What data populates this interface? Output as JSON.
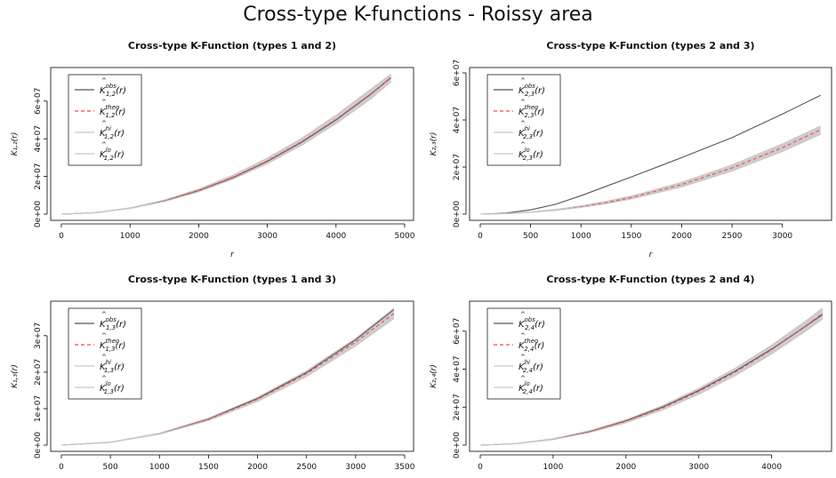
{
  "figure": {
    "title": "Cross-type K-functions - Roissy area"
  },
  "colors": {
    "obs": "#555555",
    "theo": "#ff4444",
    "envelope": "#c8c8c8",
    "axis": "#000000"
  },
  "chart_data": [
    {
      "type": "line",
      "title": "Cross-type K-Function (types 1 and 2)",
      "xlabel": "r",
      "ylabel": "K₁,₂(r)",
      "pair": "1,2",
      "xlim": [
        0,
        5000
      ],
      "ylim": [
        0,
        75000000
      ],
      "xticks": [
        0,
        1000,
        2000,
        3000,
        4000,
        5000
      ],
      "yticks": [
        0,
        20000000,
        40000000,
        60000000
      ],
      "ytick_labels": [
        "0e+00",
        "2e+07",
        "4e+07",
        "6e+07"
      ],
      "legend": {
        "position": "top-left",
        "entries": [
          "obs",
          "theo",
          "hi",
          "lo"
        ]
      },
      "grid": false,
      "x": [
        0,
        500,
        1000,
        1500,
        2000,
        2500,
        3000,
        3500,
        4000,
        4500,
        4800
      ],
      "series": [
        {
          "name": "obs",
          "values": [
            0,
            760000,
            3100000,
            7000000,
            12500000,
            19400000,
            28000000,
            38200000,
            50000000,
            63500000,
            72500000
          ]
        },
        {
          "name": "theo",
          "values": [
            0,
            785000,
            3140000,
            7070000,
            12570000,
            19630000,
            28270000,
            38480000,
            50270000,
            63620000,
            72380000
          ]
        },
        {
          "name": "hi",
          "values": [
            0,
            850000,
            3350000,
            7500000,
            13300000,
            20700000,
            29700000,
            40300000,
            52500000,
            66200000,
            74300000
          ]
        },
        {
          "name": "lo",
          "values": [
            0,
            720000,
            2950000,
            6700000,
            11900000,
            18600000,
            26800000,
            36600000,
            48000000,
            61000000,
            70200000
          ]
        }
      ]
    },
    {
      "type": "line",
      "title": "Cross-type K-Function (types 2 and 3)",
      "xlabel": "r",
      "ylabel": "K₂,₃(r)",
      "pair": "2,3",
      "xlim": [
        0,
        3400
      ],
      "ylim": [
        0,
        60000000
      ],
      "xticks": [
        0,
        500,
        1000,
        1500,
        2000,
        2500,
        3000
      ],
      "yticks": [
        0,
        20000000,
        40000000,
        60000000
      ],
      "ytick_labels": [
        "0e+00",
        "2e+07",
        "4e+07",
        "6e+07"
      ],
      "legend": {
        "position": "top-left",
        "entries": [
          "obs",
          "theo",
          "hi",
          "lo"
        ]
      },
      "grid": false,
      "x": [
        0,
        250,
        500,
        750,
        1000,
        1250,
        1500,
        2000,
        2500,
        3000,
        3380
      ],
      "series": [
        {
          "name": "obs",
          "values": [
            0,
            400000,
            1800000,
            4200000,
            7800000,
            11800000,
            15800000,
            24000000,
            32500000,
            42500000,
            50500000
          ]
        },
        {
          "name": "theo",
          "values": [
            0,
            196000,
            785000,
            1770000,
            3140000,
            4910000,
            7070000,
            12570000,
            19630000,
            28270000,
            35890000
          ]
        },
        {
          "name": "hi",
          "values": [
            0,
            230000,
            900000,
            2000000,
            3500000,
            5400000,
            7700000,
            13500000,
            20900000,
            29800000,
            37400000
          ]
        },
        {
          "name": "lo",
          "values": [
            0,
            175000,
            700000,
            1600000,
            2850000,
            4450000,
            6450000,
            11600000,
            18300000,
            26600000,
            33900000
          ]
        }
      ]
    },
    {
      "type": "line",
      "title": "Cross-type K-Function (types 1 and 3)",
      "xlabel": "r",
      "ylabel": "K₁,₃(r)",
      "pair": "1,3",
      "xlim": [
        0,
        3500
      ],
      "ylim": [
        0,
        38000000
      ],
      "xticks": [
        0,
        500,
        1000,
        1500,
        2000,
        2500,
        3000,
        3500
      ],
      "yticks": [
        0,
        10000000,
        20000000,
        30000000
      ],
      "ytick_labels": [
        "0e+00",
        "1e+07",
        "2e+07",
        "3e+07"
      ],
      "legend": {
        "position": "top-left",
        "entries": [
          "obs",
          "theo",
          "hi",
          "lo"
        ]
      },
      "grid": false,
      "x": [
        0,
        500,
        1000,
        1500,
        2000,
        2500,
        3000,
        3390
      ],
      "series": [
        {
          "name": "obs",
          "values": [
            0,
            790000,
            3200000,
            7200000,
            12800000,
            19900000,
            28900000,
            37200000
          ]
        },
        {
          "name": "theo",
          "values": [
            0,
            785000,
            3140000,
            7070000,
            12570000,
            19630000,
            28270000,
            36100000
          ]
        },
        {
          "name": "hi",
          "values": [
            0,
            830000,
            3300000,
            7400000,
            13100000,
            20400000,
            29300000,
            37500000
          ]
        },
        {
          "name": "lo",
          "values": [
            0,
            750000,
            3000000,
            6750000,
            12000000,
            18800000,
            27200000,
            34700000
          ]
        }
      ]
    },
    {
      "type": "line",
      "title": "Cross-type K-Function (types 2 and 4)",
      "xlabel": "",
      "ylabel": "K₂,₄(r)",
      "pair": "2,4",
      "xlim": [
        0,
        4700
      ],
      "ylim": [
        0,
        73000000
      ],
      "xticks": [
        0,
        1000,
        2000,
        3000,
        4000
      ],
      "yticks": [
        0,
        20000000,
        40000000,
        60000000
      ],
      "ytick_labels": [
        "0e+00",
        "2e+07",
        "4e+07",
        "6e+07"
      ],
      "legend": {
        "position": "top-left",
        "entries": [
          "obs",
          "theo",
          "hi",
          "lo"
        ]
      },
      "grid": false,
      "x": [
        0,
        500,
        1000,
        1500,
        2000,
        2500,
        3000,
        3500,
        4000,
        4500,
        4700
      ],
      "series": [
        {
          "name": "obs",
          "values": [
            0,
            800000,
            3200000,
            7200000,
            12800000,
            20000000,
            28800000,
            39000000,
            50600000,
            63500000,
            68800000
          ]
        },
        {
          "name": "theo",
          "values": [
            0,
            785000,
            3140000,
            7070000,
            12570000,
            19630000,
            28270000,
            38480000,
            50270000,
            63620000,
            69400000
          ]
        },
        {
          "name": "hi",
          "values": [
            0,
            860000,
            3400000,
            7600000,
            13400000,
            20800000,
            29900000,
            40500000,
            52700000,
            66300000,
            72200000
          ]
        },
        {
          "name": "lo",
          "values": [
            0,
            720000,
            2900000,
            6600000,
            11800000,
            18500000,
            26800000,
            36600000,
            48000000,
            60900000,
            66500000
          ]
        }
      ]
    }
  ]
}
